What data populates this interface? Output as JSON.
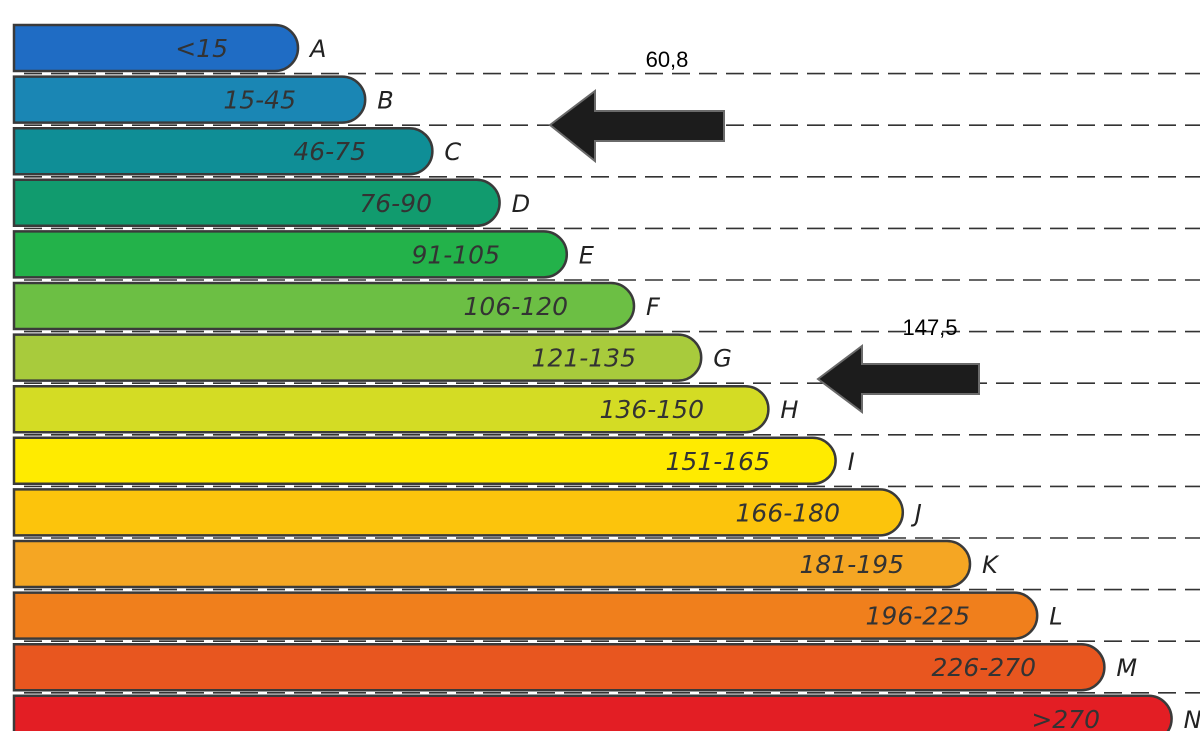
{
  "classes": [
    {
      "letter": "A",
      "range": "<15",
      "color": "#1f6cc4"
    },
    {
      "letter": "B",
      "range": "15-45",
      "color": "#1a86b4"
    },
    {
      "letter": "C",
      "range": "46-75",
      "color": "#0f8e96"
    },
    {
      "letter": "D",
      "range": "76-90",
      "color": "#119b6e"
    },
    {
      "letter": "E",
      "range": "91-105",
      "color": "#23b24a"
    },
    {
      "letter": "F",
      "range": "106-120",
      "color": "#6cbf44"
    },
    {
      "letter": "G",
      "range": "121-135",
      "color": "#a8cb3c"
    },
    {
      "letter": "H",
      "range": "136-150",
      "color": "#d4dc24"
    },
    {
      "letter": "I",
      "range": "151-165",
      "color": "#ffeb00"
    },
    {
      "letter": "J",
      "range": "166-180",
      "color": "#fcc40c"
    },
    {
      "letter": "K",
      "range": "181-195",
      "color": "#f5a623"
    },
    {
      "letter": "L",
      "range": "196-225",
      "color": "#f07f1c"
    },
    {
      "letter": "M",
      "range": "226-270",
      "color": "#e8561f"
    },
    {
      "letter": "N",
      "range": ">270",
      "color": "#e31e24"
    }
  ],
  "markers": [
    {
      "value": "60,8",
      "points_to": "C"
    },
    {
      "value": "147,5",
      "points_to": "H"
    }
  ]
}
